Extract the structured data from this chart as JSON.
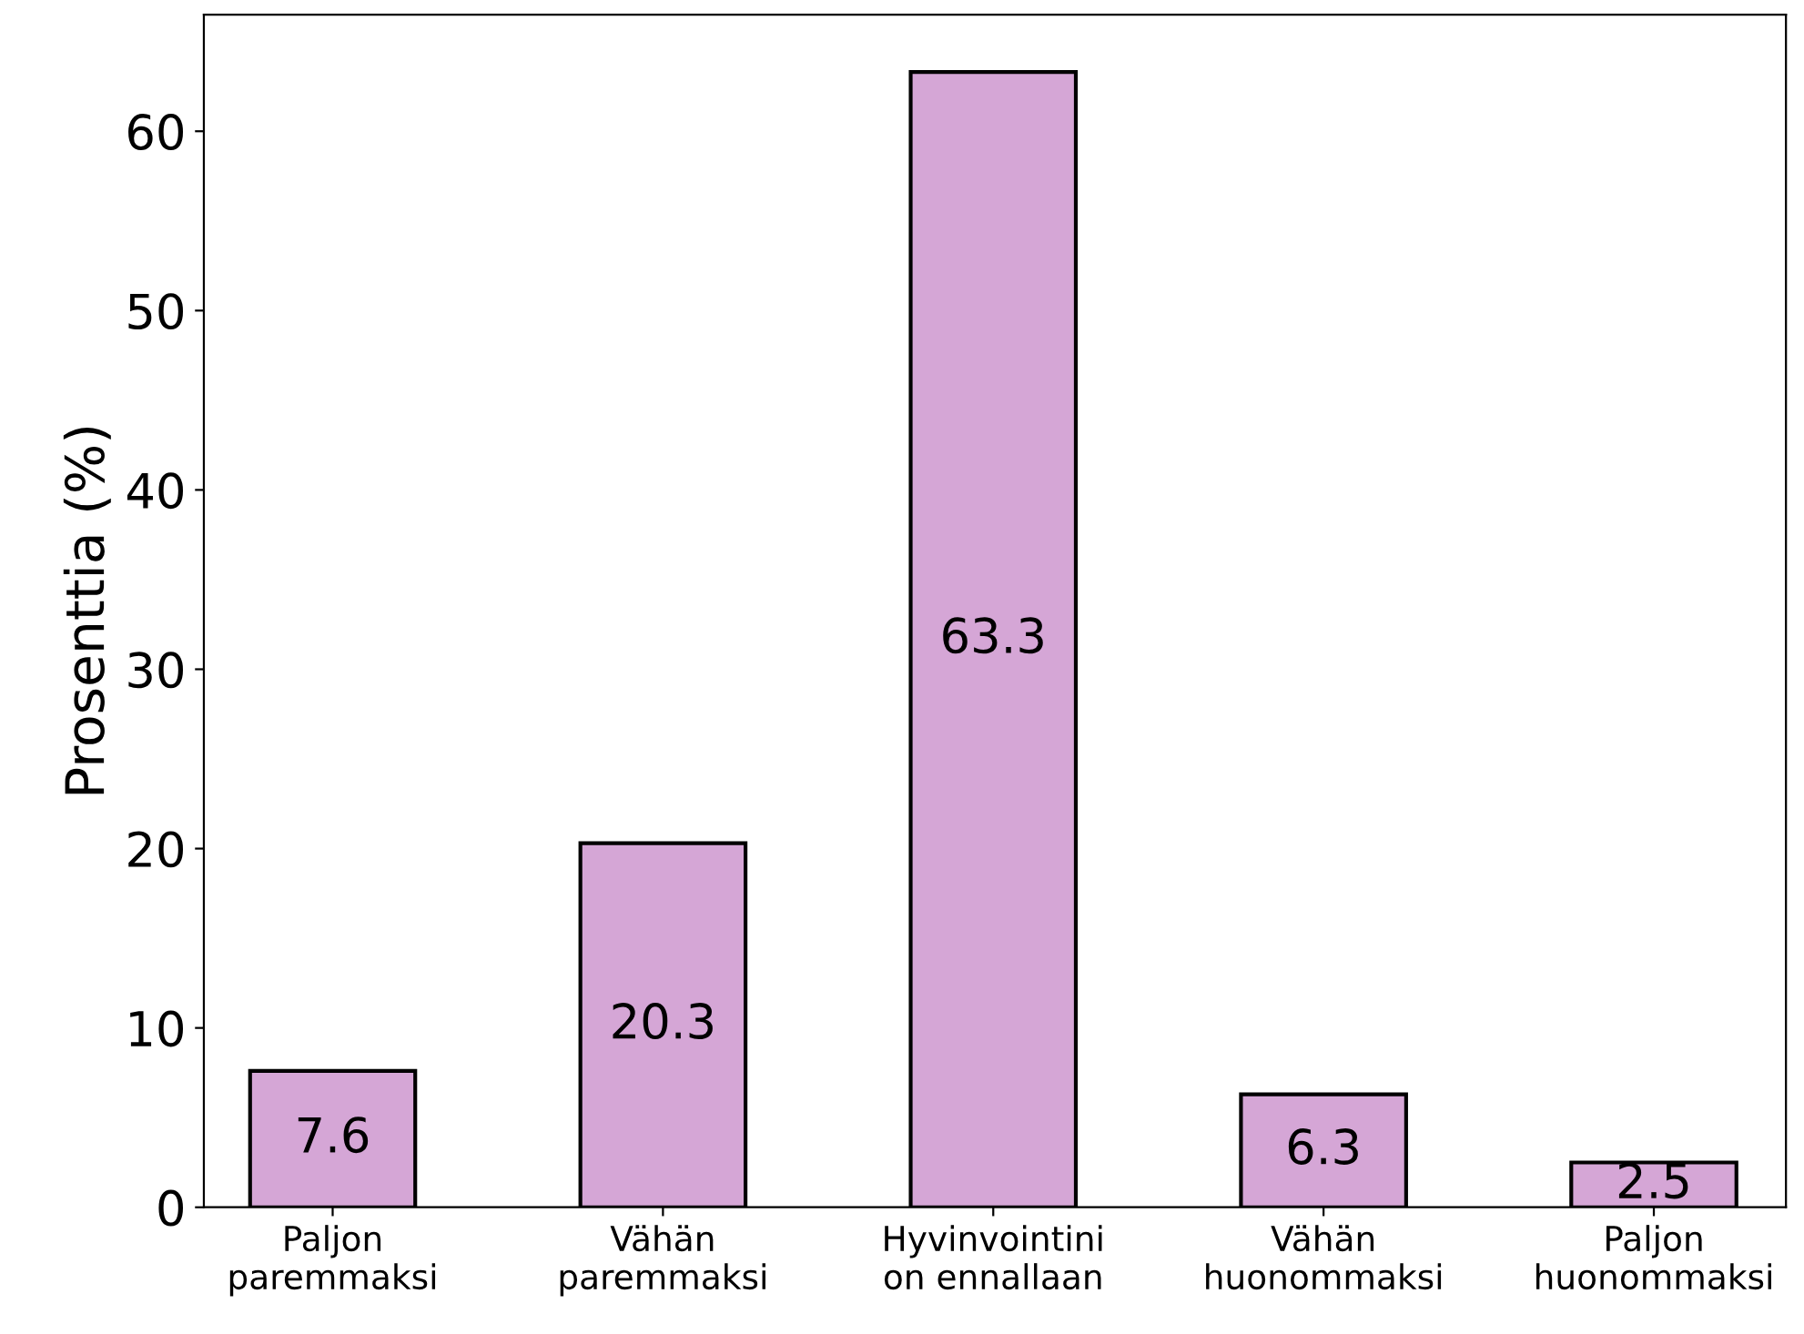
{
  "chart_data": {
    "type": "bar",
    "ylabel": "Prosenttia (%)",
    "categories": [
      "Paljon\nparemmaksi",
      "Vähän\nparemmaksi",
      "Hyvinvointini\non ennallaan",
      "Vähän\nhuonommaksi",
      "Paljon\nhuonommaksi"
    ],
    "values": [
      7.6,
      20.3,
      63.3,
      6.3,
      2.5
    ],
    "color": "#d5a6d6",
    "ylim": [
      0,
      66.5
    ],
    "yticks": [
      0,
      10,
      20,
      30,
      40,
      50,
      60
    ],
    "data_labels": true,
    "grid": false,
    "legend": false
  }
}
